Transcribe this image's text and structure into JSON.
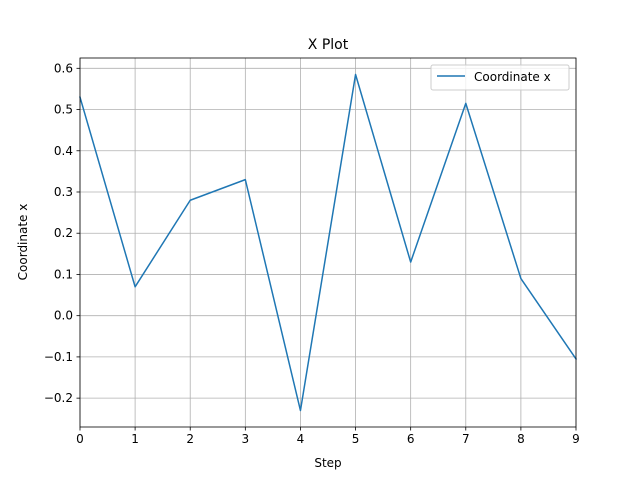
{
  "chart_data": {
    "type": "line",
    "title": "X Plot",
    "xlabel": "Step",
    "ylabel": "Coordinate x",
    "x": [
      0,
      1,
      2,
      3,
      4,
      5,
      6,
      7,
      8,
      9
    ],
    "series": [
      {
        "name": "Coordinate x",
        "color": "#1f77b4",
        "values": [
          0.53,
          0.07,
          0.28,
          0.33,
          -0.23,
          0.585,
          0.13,
          0.515,
          0.09,
          -0.105
        ]
      }
    ],
    "xlim": [
      0,
      9
    ],
    "ylim": [
      -0.27,
      0.625
    ],
    "xticks": [
      0,
      1,
      2,
      3,
      4,
      5,
      6,
      7,
      8,
      9
    ],
    "yticks": [
      -0.2,
      -0.1,
      0.0,
      0.1,
      0.2,
      0.3,
      0.4,
      0.5,
      0.6
    ],
    "ytick_labels": [
      "−0.2",
      "−0.1",
      "0.0",
      "0.1",
      "0.2",
      "0.3",
      "0.4",
      "0.5",
      "0.6"
    ],
    "grid": true,
    "grid_color": "#b0b0b0",
    "legend_position": "upper right"
  }
}
